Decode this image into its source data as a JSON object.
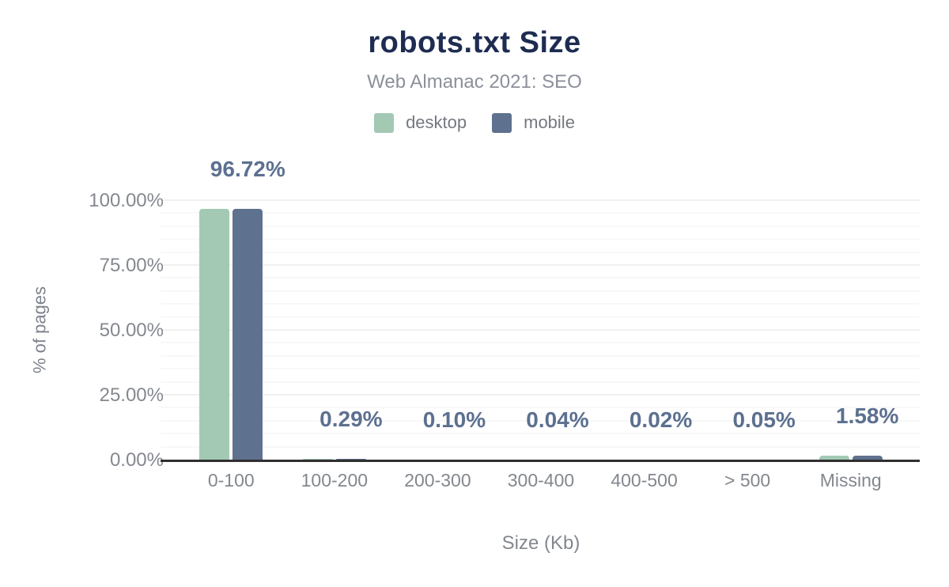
{
  "chart_data": {
    "type": "bar",
    "title": "robots.txt Size",
    "subtitle": "Web Almanac 2021: SEO",
    "xlabel": "Size (Kb)",
    "ylabel": "% of pages",
    "categories": [
      "0-100",
      "100-200",
      "200-300",
      "300-400",
      "400-500",
      "> 500",
      "Missing"
    ],
    "series": [
      {
        "name": "desktop",
        "color": "#a3c9b4",
        "values": [
          96.72,
          0.29,
          0.1,
          0.04,
          0.02,
          0.05,
          1.58
        ]
      },
      {
        "name": "mobile",
        "color": "#5e718e",
        "values": [
          96.72,
          0.29,
          0.1,
          0.04,
          0.02,
          0.05,
          1.58
        ]
      }
    ],
    "value_labels": [
      "96.72%",
      "0.29%",
      "0.10%",
      "0.04%",
      "0.02%",
      "0.05%",
      "1.58%"
    ],
    "yticks": [
      "0.00%",
      "25.00%",
      "50.00%",
      "75.00%",
      "100.00%"
    ],
    "ylim": [
      0,
      100
    ],
    "grid": {
      "minor_step_pct": 5,
      "major_step_pct": 25,
      "visible": true
    },
    "legend_position": "top",
    "colors": {
      "title": "#1e2c52",
      "subtitle": "#8b909a",
      "axis_text": "#84888f",
      "value_label": "#5c7090",
      "axis_line": "#2f2f2f"
    }
  }
}
